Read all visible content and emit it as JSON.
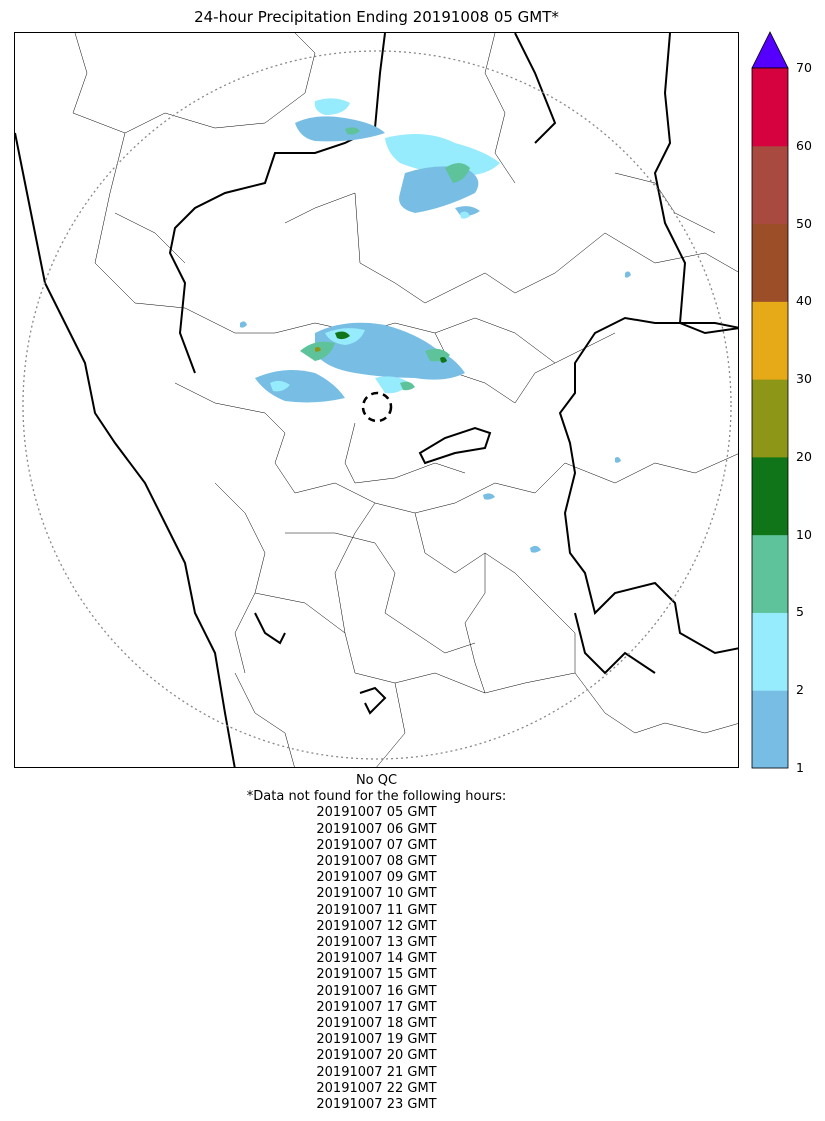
{
  "title": "24-hour Precipitation Ending 20191008 05 GMT*",
  "colorbar": {
    "ticks": [
      "1",
      "2",
      "5",
      "10",
      "20",
      "30",
      "40",
      "50",
      "60",
      "70"
    ],
    "colors": [
      "#78bee4",
      "#96ebfc",
      "#5ec39a",
      "#107518",
      "#8e9618",
      "#e6a918",
      "#9c4e28",
      "#a84a40",
      "#d6013f"
    ],
    "extend_color": "#5500ff"
  },
  "notes": {
    "qc": "No QC",
    "missing_header": "*Data not found for the following hours:",
    "hours": [
      "20191007 05 GMT",
      "20191007 06 GMT",
      "20191007 07 GMT",
      "20191007 08 GMT",
      "20191007 09 GMT",
      "20191007 10 GMT",
      "20191007 11 GMT",
      "20191007 12 GMT",
      "20191007 13 GMT",
      "20191007 14 GMT",
      "20191007 15 GMT",
      "20191007 16 GMT",
      "20191007 17 GMT",
      "20191007 18 GMT",
      "20191007 19 GMT",
      "20191007 20 GMT",
      "20191007 21 GMT",
      "20191007 22 GMT",
      "20191007 23 GMT"
    ]
  }
}
